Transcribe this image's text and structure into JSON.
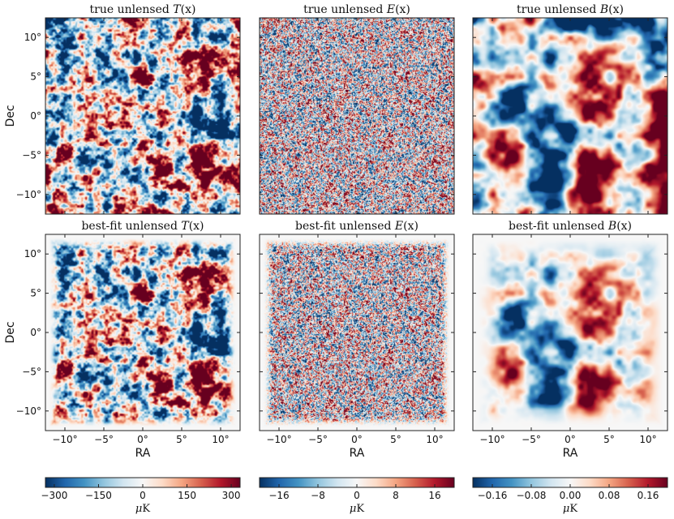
{
  "chart_data": {
    "type": "heatmap",
    "colormap": "RdBu_r",
    "rows": [
      {
        "ylabel": "Dec",
        "panels": [
          {
            "title_prefix": "true unlensed ",
            "field": "T",
            "title_arg": "(x)",
            "kind": "T",
            "window": false
          },
          {
            "title_prefix": "true unlensed ",
            "field": "E",
            "title_arg": "(x)",
            "kind": "E",
            "window": false
          },
          {
            "title_prefix": "true unlensed ",
            "field": "B",
            "title_arg": "(x)",
            "kind": "B",
            "window": false
          }
        ]
      },
      {
        "ylabel": "Dec",
        "xlabel": "RA",
        "panels": [
          {
            "title_prefix": "best-fit unlensed ",
            "field": "T",
            "title_arg": "(x)",
            "kind": "T",
            "window": true
          },
          {
            "title_prefix": "best-fit unlensed ",
            "field": "E",
            "title_arg": "(x)",
            "kind": "E",
            "window": true
          },
          {
            "title_prefix": "best-fit unlensed ",
            "field": "B",
            "title_arg": "(x)",
            "kind": "B",
            "window": true
          }
        ]
      }
    ],
    "x_axis": {
      "label": "RA",
      "range": [
        -12.5,
        12.5
      ],
      "ticks": [
        -10,
        -5,
        0,
        5,
        10
      ],
      "tick_labels": [
        "−10°",
        "−5°",
        "0°",
        "5°",
        "10°"
      ]
    },
    "y_axis": {
      "label": "Dec",
      "range": [
        -12.5,
        12.5
      ],
      "ticks": [
        10,
        5,
        0,
        -5,
        -10
      ],
      "tick_labels": [
        "10°",
        "5°",
        "0°",
        "−5°",
        "−10°"
      ]
    },
    "colorbars": [
      {
        "range": [
          -330,
          330
        ],
        "ticks": [
          -300,
          -150,
          0,
          150,
          300
        ],
        "tick_labels": [
          "−300",
          "−150",
          "0",
          "150",
          "300"
        ],
        "unit_symbol": "μ",
        "unit_rest": "K"
      },
      {
        "range": [
          -20,
          20
        ],
        "ticks": [
          -16,
          -8,
          0,
          8,
          16
        ],
        "tick_labels": [
          "−16",
          "−8",
          "0",
          "8",
          "16"
        ],
        "unit_symbol": "μ",
        "unit_rest": "K"
      },
      {
        "range": [
          -0.2,
          0.2
        ],
        "ticks": [
          -0.16,
          -0.08,
          0.0,
          0.08,
          0.16
        ],
        "tick_labels": [
          "−0.16",
          "−0.08",
          "0.00",
          "0.08",
          "0.16"
        ],
        "unit_symbol": "μ",
        "unit_rest": "K"
      }
    ]
  }
}
